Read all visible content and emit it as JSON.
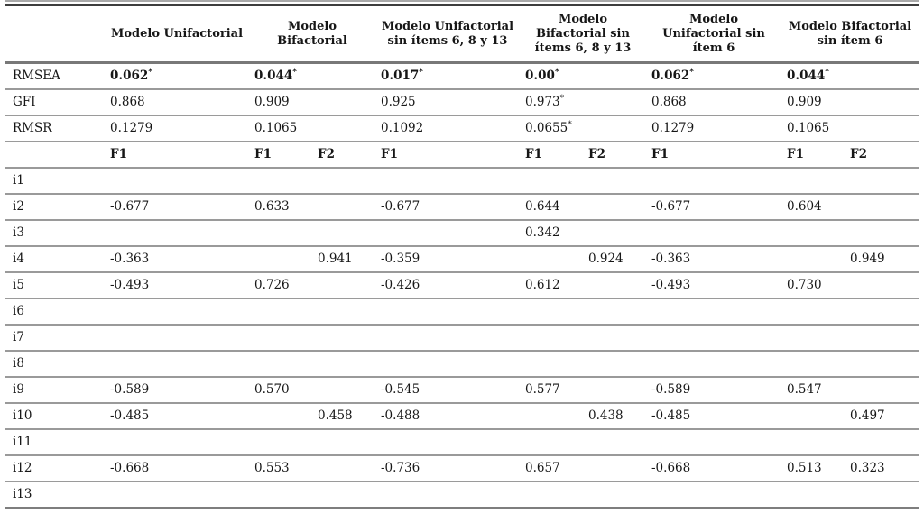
{
  "table": {
    "groups": [
      {
        "label": "Modelo Unifactorial",
        "cols": [
          "F1"
        ]
      },
      {
        "label": "Modelo Bifactorial",
        "cols": [
          "F1",
          "F2"
        ]
      },
      {
        "label": "Modelo Unifactorial sin ítems 6, 8 y 13",
        "cols": [
          "F1"
        ]
      },
      {
        "label": "Modelo Bifactorial sin ítems 6, 8 y 13",
        "cols": [
          "F1",
          "F2"
        ]
      },
      {
        "label": "Modelo Unifactorial sin ítem 6",
        "cols": [
          "F1"
        ]
      },
      {
        "label": "Modelo Bifactorial sin ítem 6",
        "cols": [
          "F1",
          "F2"
        ]
      }
    ],
    "fit_rows": [
      {
        "label": "RMSEA",
        "bold": true,
        "values": [
          "0.062*",
          "0.044*",
          "0.017*",
          "0.00*",
          "0.062*",
          "0.044*"
        ]
      },
      {
        "label": "GFI",
        "bold": false,
        "values": [
          "0.868",
          "0.909",
          "0.925",
          "0.973*",
          "0.868",
          "0.909"
        ]
      },
      {
        "label": "RMSR",
        "bold": false,
        "values": [
          "0.1279",
          "0.1065",
          "0.1092",
          "0.0655*",
          "0.1279",
          "0.1065"
        ]
      }
    ],
    "factor_header": [
      "F1",
      "F1",
      "F2",
      "F1",
      "F1",
      "F2",
      "F1",
      "F1",
      "F2"
    ],
    "item_rows": [
      {
        "label": "i1",
        "values": [
          "",
          "",
          "",
          "",
          "",
          "",
          "",
          "",
          ""
        ]
      },
      {
        "label": "i2",
        "values": [
          "-0.677",
          "0.633",
          "",
          "-0.677",
          "0.644",
          "",
          "-0.677",
          "0.604",
          ""
        ]
      },
      {
        "label": "i3",
        "values": [
          "",
          "",
          "",
          "",
          "0.342",
          "",
          "",
          "",
          ""
        ]
      },
      {
        "label": "i4",
        "values": [
          "-0.363",
          "",
          "0.941",
          "-0.359",
          "",
          "0.924",
          "-0.363",
          "",
          "0.949"
        ]
      },
      {
        "label": "i5",
        "values": [
          "-0.493",
          "0.726",
          "",
          "-0.426",
          "0.612",
          "",
          "-0.493",
          "0.730",
          ""
        ]
      },
      {
        "label": "i6",
        "values": [
          "",
          "",
          "",
          "",
          "",
          "",
          "",
          "",
          ""
        ]
      },
      {
        "label": "i7",
        "values": [
          "",
          "",
          "",
          "",
          "",
          "",
          "",
          "",
          ""
        ]
      },
      {
        "label": "i8",
        "values": [
          "",
          "",
          "",
          "",
          "",
          "",
          "",
          "",
          ""
        ]
      },
      {
        "label": "i9",
        "values": [
          "-0.589",
          "0.570",
          "",
          "-0.545",
          "0.577",
          "",
          "-0.589",
          "0.547",
          ""
        ]
      },
      {
        "label": "i10",
        "values": [
          "-0.485",
          "",
          "0.458",
          "-0.488",
          "",
          "0.438",
          "-0.485",
          "",
          "0.497"
        ]
      },
      {
        "label": "i11",
        "values": [
          "",
          "",
          "",
          "",
          "",
          "",
          "",
          "",
          ""
        ]
      },
      {
        "label": "i12",
        "values": [
          "-0.668",
          "0.553",
          "",
          "-0.736",
          "0.657",
          "",
          "-0.668",
          "0.513",
          "0.323"
        ]
      },
      {
        "label": "i13",
        "values": [
          "",
          "",
          "",
          "",
          "",
          "",
          "",
          "",
          ""
        ]
      }
    ]
  }
}
